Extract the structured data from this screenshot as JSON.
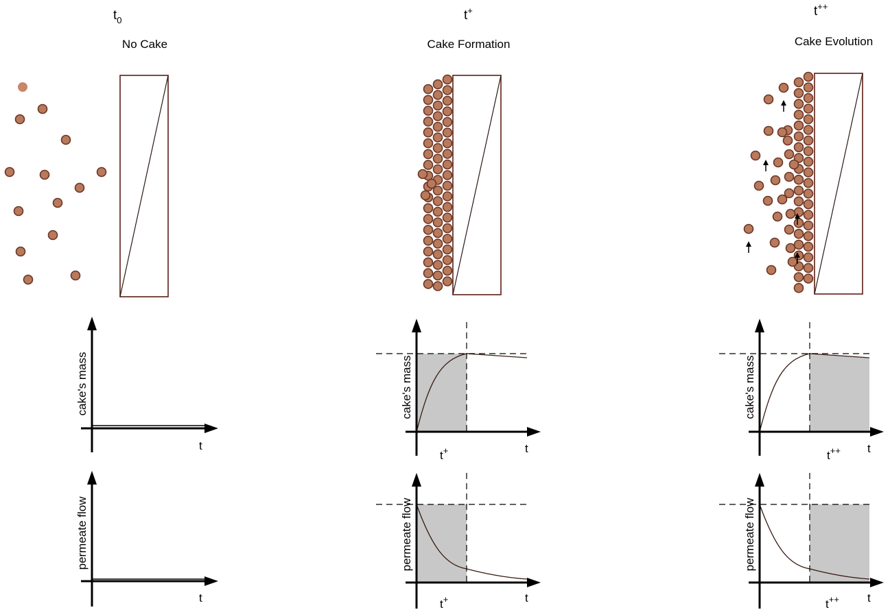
{
  "phases": [
    {
      "id": "t0",
      "symbol_base": "t",
      "symbol_script": "0",
      "script_type": "sub",
      "label": "No Cake"
    },
    {
      "id": "t_plus",
      "symbol_base": "t",
      "symbol_script": "+",
      "script_type": "sup",
      "label": "Cake Formation"
    },
    {
      "id": "t_plusplus",
      "symbol_base": "t",
      "symbol_script": "++",
      "script_type": "sup",
      "label": "Cake Evolution"
    }
  ],
  "axis_labels": {
    "mass": "cake's mass",
    "flow": "permeate flow",
    "time": "t"
  },
  "markers": {
    "t_plus": {
      "base": "t",
      "script": "+"
    },
    "t_plusplus": {
      "base": "t",
      "script": "++"
    }
  },
  "colors": {
    "particle_fill": "#b87a5c",
    "particle_stroke": "#6b3524",
    "membrane_border": "#5a1e14",
    "shade": "#c8c8c8"
  }
}
